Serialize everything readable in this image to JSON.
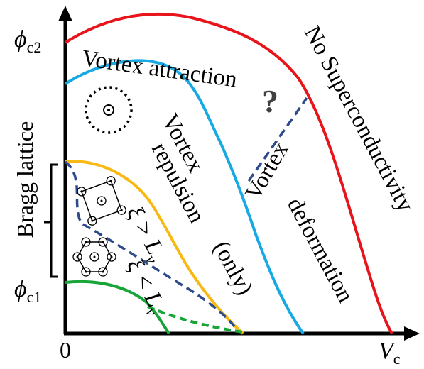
{
  "axes": {
    "x_label": "V",
    "x_label_sub": "c",
    "origin_label": "0",
    "y_tick_upper": "ϕ",
    "y_tick_upper_sub": "c2",
    "y_tick_lower": "ϕ",
    "y_tick_lower_sub": "c1"
  },
  "bracket_label": "Bragg lattice",
  "regions": {
    "attraction": "Vortex attraction",
    "question": "?",
    "no_sc": "No Superconductivity",
    "repulsion_1": "Vortex",
    "repulsion_2": "repulsion",
    "repulsion_3": "(only)",
    "deformation_1": "Vortex",
    "deformation_2": "deformation"
  },
  "conditions": {
    "upper": "ξ > L",
    "upper_sub": "v",
    "lower": "ξ < L",
    "lower_sub": "v"
  },
  "colors": {
    "red": "#e8141b",
    "blue": "#17a9e3",
    "yellow": "#f7b912",
    "green": "#17a538",
    "dashed_navy": "#2c4a8c",
    "axis": "#000000"
  },
  "icons": [
    "single-vortex-icon",
    "square-lattice-icon",
    "hexagonal-lattice-icon"
  ]
}
